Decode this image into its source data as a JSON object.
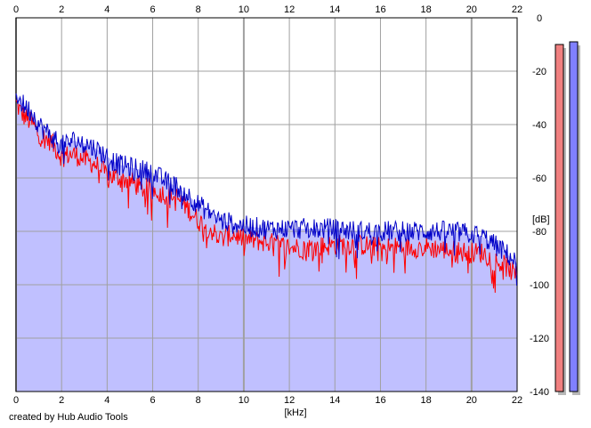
{
  "app": {
    "credit": "created by Hub Audio Tools"
  },
  "colors": {
    "background": "#ffffff",
    "plot_fill": "#c0c0ff",
    "grid": "#a0a0a0",
    "series_left": "#ff0000",
    "series_right": "#0000c8",
    "meter_left": "#f08080",
    "meter_right": "#8080ff"
  },
  "chart_data": {
    "type": "line",
    "title": "",
    "xlabel": "[kHz]",
    "ylabel": "[dB]",
    "xlim": [
      0,
      22
    ],
    "ylim": [
      -140,
      0
    ],
    "x_ticks": [
      0,
      2,
      4,
      6,
      8,
      10,
      12,
      14,
      16,
      18,
      20,
      22
    ],
    "y_ticks": [
      0,
      -20,
      -40,
      -60,
      -80,
      -100,
      -120,
      -140
    ],
    "x_tick_labels": [
      "0",
      "2",
      "4",
      "6",
      "8",
      "10",
      "12",
      "14",
      "16",
      "18",
      "20",
      "22"
    ],
    "y_tick_labels": [
      "0",
      "-20",
      "-40",
      "-60",
      "-80",
      "-100",
      "-120",
      "-140"
    ],
    "grid": true,
    "area_fill": true,
    "series": [
      {
        "color": "#ff0000",
        "x": [
          0,
          0.25,
          0.5,
          0.75,
          1,
          1.5,
          2,
          2.5,
          3,
          3.5,
          4,
          4.5,
          5,
          5.5,
          6,
          6.5,
          7,
          7.5,
          8,
          8.5,
          9,
          9.5,
          10,
          11,
          12,
          13,
          14,
          15,
          16,
          17,
          18,
          19,
          20,
          20.5,
          21,
          21.5,
          22
        ],
        "y": [
          -32,
          -36,
          -38,
          -40,
          -44,
          -46,
          -52,
          -51,
          -53,
          -55,
          -59,
          -60,
          -61,
          -64,
          -64,
          -66,
          -67,
          -71,
          -76,
          -79,
          -83,
          -81,
          -83,
          -84,
          -86,
          -86,
          -85,
          -85,
          -86,
          -86,
          -86,
          -87,
          -88,
          -88,
          -91,
          -93,
          -97
        ]
      },
      {
        "color": "#0000c8",
        "x": [
          0,
          0.25,
          0.5,
          0.75,
          1,
          1.5,
          2,
          2.5,
          3,
          3.5,
          4,
          4.5,
          5,
          5.5,
          6,
          6.5,
          7,
          7.5,
          8,
          8.5,
          9,
          9.5,
          10,
          11,
          12,
          13,
          14,
          15,
          16,
          17,
          18,
          19,
          20,
          20.5,
          21,
          21.5,
          22
        ],
        "y": [
          -28,
          -32,
          -34,
          -36,
          -40,
          -44,
          -48,
          -46,
          -47,
          -49,
          -52,
          -55,
          -56,
          -57,
          -58,
          -61,
          -63,
          -66,
          -70,
          -73,
          -76,
          -77,
          -78,
          -79,
          -79,
          -79,
          -79,
          -80,
          -80,
          -80,
          -80,
          -80,
          -81,
          -82,
          -85,
          -88,
          -92
        ]
      }
    ],
    "level_meters": [
      {
        "color": "#f08080",
        "level_db": -10
      },
      {
        "color": "#8080ff",
        "level_db": -9
      }
    ]
  }
}
